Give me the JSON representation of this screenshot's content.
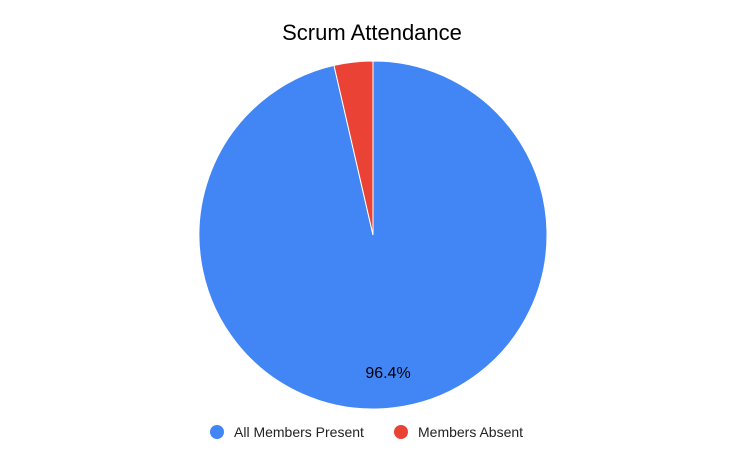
{
  "chart_data": {
    "type": "pie",
    "title": "Scrum Attendance",
    "categories": [
      "All Members Present",
      "Members Absent"
    ],
    "values": [
      96.4,
      3.6
    ],
    "colors": [
      "#4285f4",
      "#ea4335"
    ],
    "data_labels": [
      "96.4%",
      ""
    ],
    "legend_position": "bottom"
  }
}
